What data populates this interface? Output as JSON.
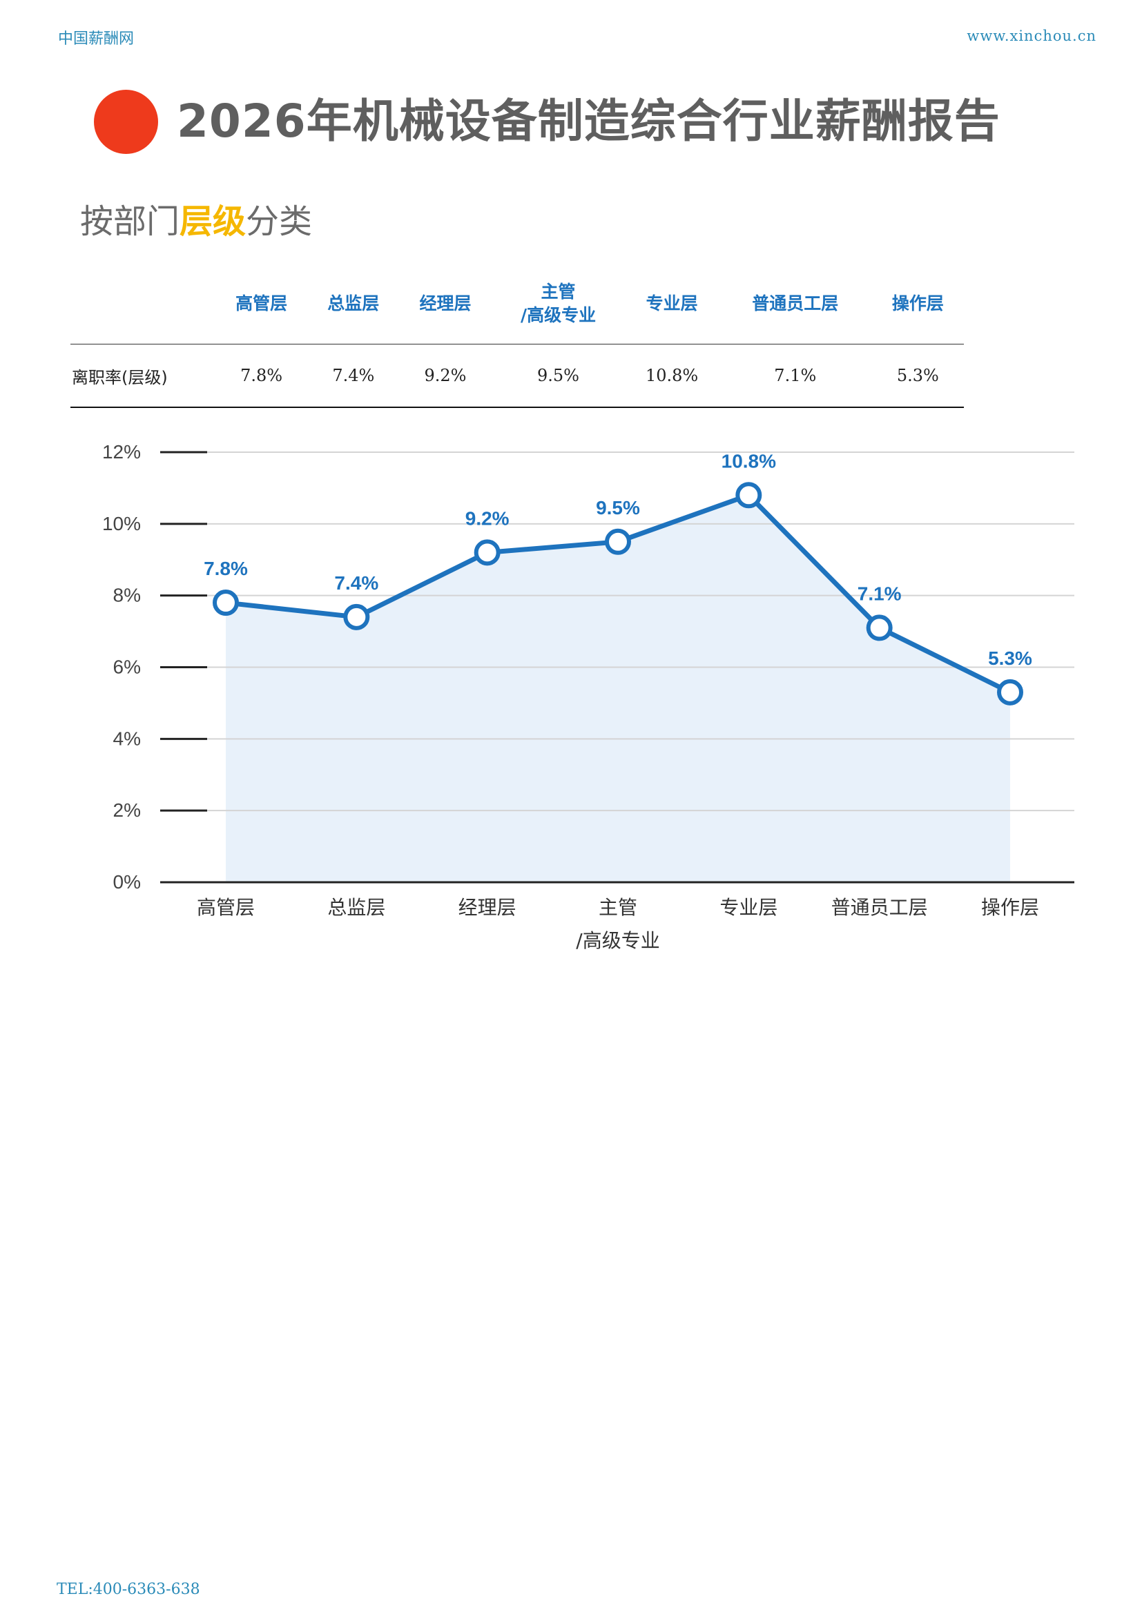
{
  "header": {
    "site_name": "中国薪酬网",
    "website": "www.xinchou.cn"
  },
  "report": {
    "title": "2026年机械设备制造综合行业薪酬报告",
    "subtitle_pre": "按部门",
    "subtitle_highlight": "层级",
    "subtitle_post": "分类"
  },
  "table": {
    "columns": [
      "高管层",
      "总监层",
      "经理层",
      [
        "主管",
        "/高级专业"
      ],
      "专业层",
      "普通员工层",
      "操作层"
    ],
    "row_label": "离职率(层级)",
    "values": [
      "7.8%",
      "7.4%",
      "9.2%",
      "9.5%",
      "10.8%",
      "7.1%",
      "5.3%"
    ]
  },
  "chart_data": {
    "type": "area",
    "categories": [
      [
        "高管层"
      ],
      [
        "总监层"
      ],
      [
        "经理层"
      ],
      [
        "主管",
        "/高级专业"
      ],
      [
        "专业层"
      ],
      [
        "普通员工层"
      ],
      [
        "操作层"
      ]
    ],
    "series": [
      {
        "values": [
          7.8,
          7.4,
          9.2,
          9.5,
          10.8,
          7.1,
          5.3
        ]
      }
    ],
    "data_labels": [
      "7.8%",
      "7.4%",
      "9.2%",
      "9.5%",
      "10.8%",
      "7.1%",
      "5.3%"
    ],
    "y_ticks": [
      "0%",
      "2%",
      "4%",
      "6%",
      "8%",
      "10%",
      "12%"
    ],
    "ylim": [
      0,
      12
    ],
    "grid": true,
    "colors": {
      "line": "#1e73be",
      "area": "#e8f1fa",
      "grid": "#d4d4d4",
      "axis": "#222222",
      "label": "#1e73be"
    }
  },
  "footer": {
    "tel": "TEL:400-6363-638"
  }
}
